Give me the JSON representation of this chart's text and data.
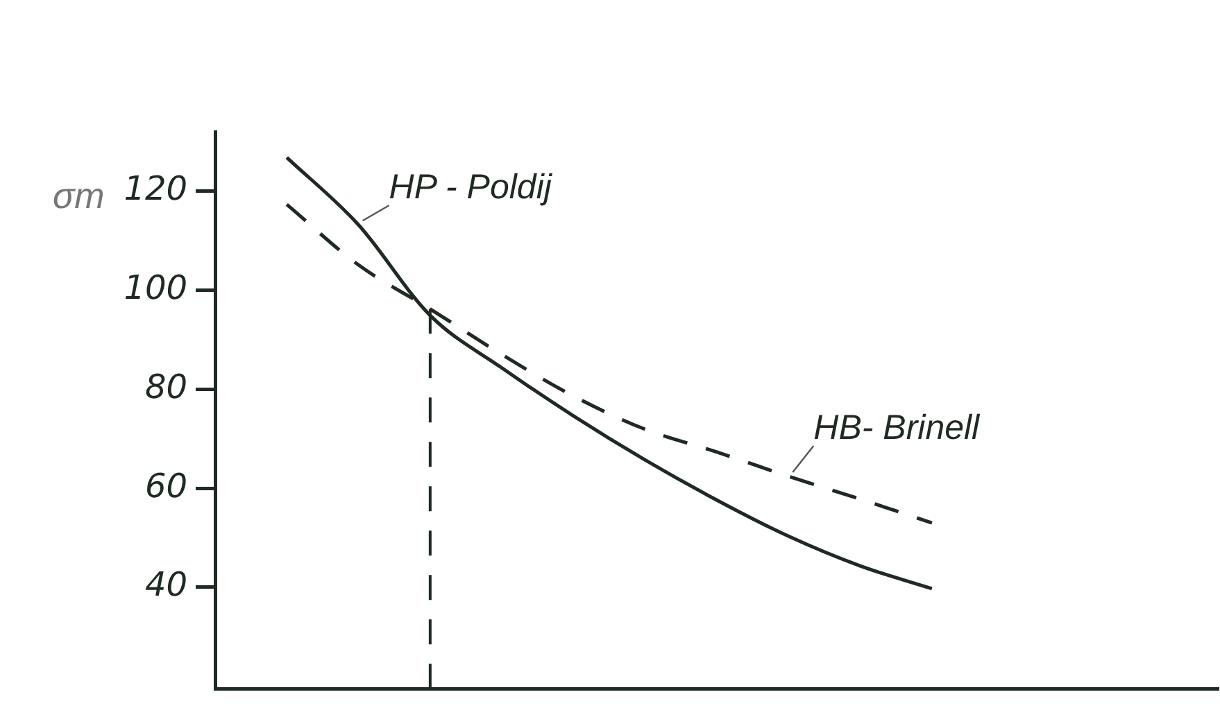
{
  "chart_data": {
    "type": "line",
    "ylabel": "σm",
    "categories": [
      null,
      null,
      null,
      null,
      null,
      null,
      null,
      null,
      null,
      null,
      null,
      null,
      null,
      null,
      null
    ],
    "series": [
      {
        "name": "HP - Poldij",
        "color": "#1f2a22",
        "line_style": "solid",
        "values": [
          null,
          126.8,
          113.2,
          94.9,
          84.3,
          74.6,
          65.7,
          57.6,
          50.3,
          44.3,
          39.7,
          null,
          null,
          null,
          null
        ]
      },
      {
        "name": "HB- Brinell",
        "color": "#1f2a22",
        "line_style": "dashed",
        "values": [
          null,
          117.3,
          105.1,
          96.2,
          87,
          78.6,
          71.9,
          67.3,
          62.4,
          57.8,
          53,
          null,
          null,
          null,
          null
        ]
      }
    ],
    "ylim": [
      19.5,
      132
    ],
    "yticks": [
      40,
      60,
      80,
      100,
      120
    ],
    "grid": false,
    "legend": false,
    "marker": "none",
    "tick_labels": "y"
  }
}
